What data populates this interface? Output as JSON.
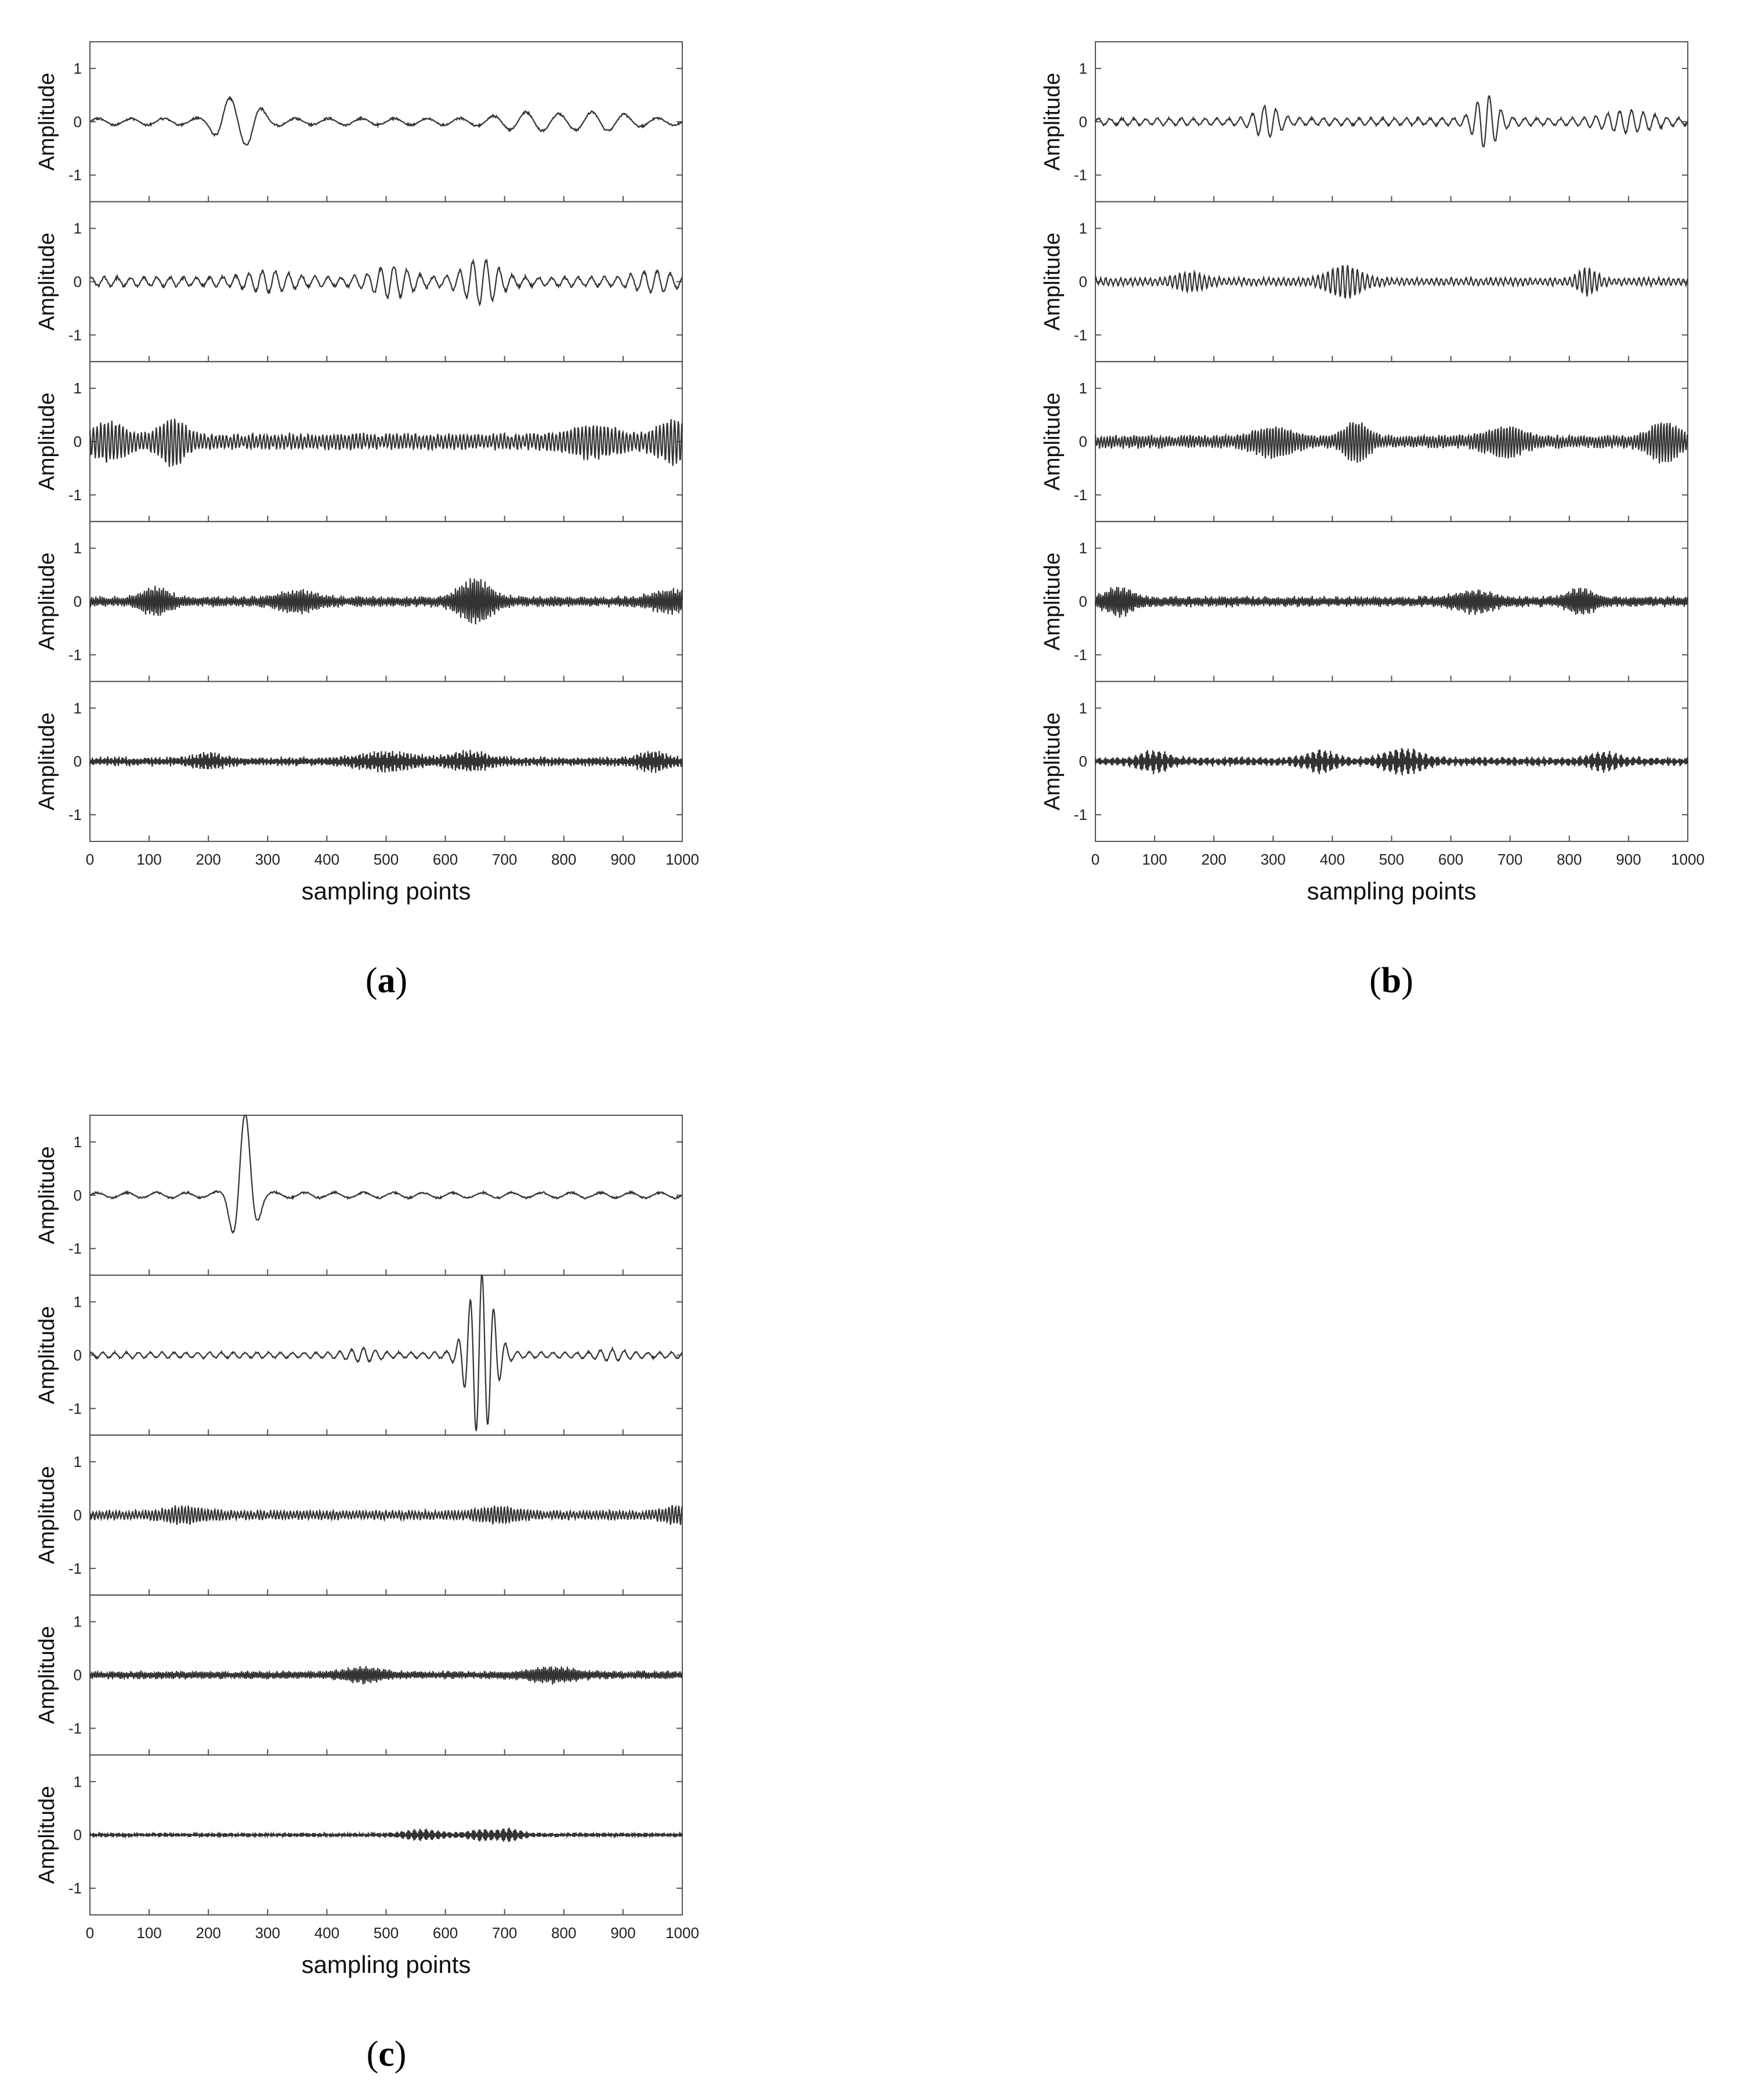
{
  "figure": {
    "panels": [
      {
        "id": "a",
        "caption_open": "(",
        "caption_letter": "a",
        "caption_close": ")",
        "xlabel": "sampling points",
        "ylabel": "Amplitude",
        "x_ticks": [
          "0",
          "100",
          "200",
          "300",
          "400",
          "500",
          "600",
          "700",
          "800",
          "900",
          "1000"
        ],
        "y_ticks": [
          "1",
          "0",
          "-1"
        ]
      },
      {
        "id": "b",
        "caption_open": "(",
        "caption_letter": "b",
        "caption_close": ")",
        "xlabel": "sampling points",
        "ylabel": "Amplitude",
        "x_ticks": [
          "0",
          "100",
          "200",
          "300",
          "400",
          "500",
          "600",
          "700",
          "800",
          "900",
          "1000"
        ],
        "y_ticks": [
          "1",
          "0",
          "-1"
        ]
      },
      {
        "id": "c",
        "caption_open": "(",
        "caption_letter": "c",
        "caption_close": ")",
        "xlabel": "sampling points",
        "ylabel": "Amplitude",
        "x_ticks": [
          "0",
          "100",
          "200",
          "300",
          "400",
          "500",
          "600",
          "700",
          "800",
          "900",
          "1000"
        ],
        "y_ticks": [
          "1",
          "0",
          "-1"
        ]
      }
    ]
  },
  "chart_data": [
    {
      "panel": "a",
      "type": "line",
      "title": "",
      "xlabel": "sampling points",
      "ylabel": "Amplitude",
      "xlim": [
        0,
        1000
      ],
      "ylim": [
        -1.5,
        1.5
      ],
      "grid": false,
      "line_color": "#333333",
      "subplots": [
        {
          "index": 1,
          "freq": 0.018,
          "base_amp": 0.06,
          "bursts": [
            [
              230,
              0.35,
              25
            ],
            [
              270,
              0.35,
              25
            ],
            [
              740,
              0.12,
              60
            ],
            [
              860,
              0.12,
              60
            ]
          ]
        },
        {
          "index": 2,
          "freq": 0.045,
          "base_amp": 0.08,
          "bursts": [
            [
              300,
              0.12,
              50
            ],
            [
              510,
              0.22,
              40
            ],
            [
              660,
              0.35,
              35
            ],
            [
              950,
              0.12,
              40
            ]
          ]
        },
        {
          "index": 3,
          "freq": 0.16,
          "base_amp": 0.12,
          "bursts": [
            [
              30,
              0.25,
              40
            ],
            [
              140,
              0.35,
              25
            ],
            [
              850,
              0.2,
              50
            ],
            [
              990,
              0.3,
              40
            ]
          ]
        },
        {
          "index": 4,
          "freq": 0.28,
          "base_amp": 0.08,
          "bursts": [
            [
              110,
              0.2,
              30
            ],
            [
              350,
              0.15,
              40
            ],
            [
              650,
              0.35,
              35
            ],
            [
              980,
              0.15,
              40
            ]
          ]
        },
        {
          "index": 5,
          "freq": 0.42,
          "base_amp": 0.07,
          "bursts": [
            [
              200,
              0.1,
              30
            ],
            [
              500,
              0.12,
              60
            ],
            [
              640,
              0.13,
              40
            ],
            [
              950,
              0.14,
              30
            ]
          ]
        }
      ]
    },
    {
      "panel": "b",
      "type": "line",
      "title": "",
      "xlabel": "sampling points",
      "ylabel": "Amplitude",
      "xlim": [
        0,
        1000
      ],
      "ylim": [
        -1.5,
        1.5
      ],
      "grid": false,
      "line_color": "#333333",
      "subplots": [
        {
          "index": 1,
          "freq": 0.05,
          "base_amp": 0.06,
          "bursts": [
            [
              290,
              0.25,
              25
            ],
            [
              660,
              0.45,
              25
            ],
            [
              900,
              0.15,
              50
            ]
          ]
        },
        {
          "index": 2,
          "freq": 0.12,
          "base_amp": 0.06,
          "bursts": [
            [
              160,
              0.12,
              30
            ],
            [
              420,
              0.25,
              35
            ],
            [
              830,
              0.2,
              20
            ]
          ]
        },
        {
          "index": 3,
          "freq": 0.2,
          "base_amp": 0.1,
          "bursts": [
            [
              300,
              0.2,
              40
            ],
            [
              440,
              0.3,
              25
            ],
            [
              690,
              0.2,
              40
            ],
            [
              960,
              0.3,
              30
            ]
          ]
        },
        {
          "index": 4,
          "freq": 0.3,
          "base_amp": 0.08,
          "bursts": [
            [
              40,
              0.2,
              30
            ],
            [
              640,
              0.15,
              40
            ],
            [
              820,
              0.18,
              30
            ]
          ]
        },
        {
          "index": 5,
          "freq": 0.45,
          "base_amp": 0.07,
          "bursts": [
            [
              100,
              0.15,
              30
            ],
            [
              380,
              0.15,
              30
            ],
            [
              520,
              0.18,
              40
            ],
            [
              860,
              0.12,
              30
            ]
          ]
        }
      ]
    },
    {
      "panel": "c",
      "type": "line",
      "title": "",
      "xlabel": "sampling points",
      "ylabel": "Amplitude",
      "xlim": [
        0,
        1000
      ],
      "ylim": [
        -1.5,
        1.5
      ],
      "grid": false,
      "line_color": "#333333",
      "subplots": [
        {
          "index": 1,
          "freq": 0.02,
          "base_amp": 0.05,
          "bursts": [
            [
              260,
              1.5,
              22
            ]
          ]
        },
        {
          "index": 2,
          "freq": 0.05,
          "base_amp": 0.05,
          "bursts": [
            [
              660,
              1.5,
              28
            ],
            [
              460,
              0.08,
              30
            ],
            [
              880,
              0.06,
              30
            ]
          ]
        },
        {
          "index": 3,
          "freq": 0.18,
          "base_amp": 0.07,
          "bursts": [
            [
              160,
              0.1,
              40
            ],
            [
              690,
              0.09,
              40
            ],
            [
              990,
              0.1,
              30
            ]
          ]
        },
        {
          "index": 4,
          "freq": 0.3,
          "base_amp": 0.06,
          "bursts": [
            [
              460,
              0.1,
              40
            ],
            [
              780,
              0.1,
              50
            ]
          ]
        },
        {
          "index": 5,
          "freq": 0.45,
          "base_amp": 0.03,
          "bursts": [
            [
              560,
              0.08,
              40
            ],
            [
              660,
              0.08,
              30
            ],
            [
              710,
              0.09,
              25
            ]
          ]
        }
      ]
    }
  ]
}
